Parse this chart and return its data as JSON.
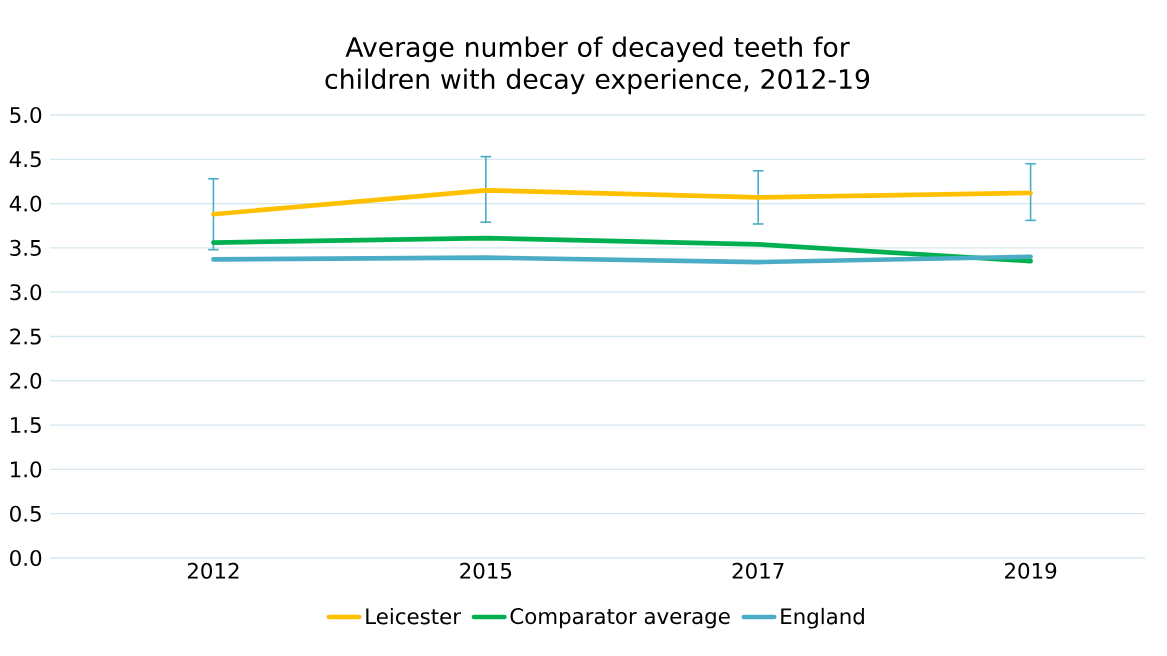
{
  "chart_data": {
    "type": "line",
    "title": "Average number of decayed teeth for children with decay experience, 2012-19",
    "categories": [
      "2012",
      "2015",
      "2017",
      "2019"
    ],
    "series": [
      {
        "name": "Leicester",
        "color": "#ffc000",
        "values": [
          3.88,
          4.15,
          4.07,
          4.12
        ],
        "errors": [
          [
            3.48,
            4.28
          ],
          [
            3.79,
            4.53
          ],
          [
            3.77,
            4.37
          ],
          [
            3.81,
            4.45
          ]
        ]
      },
      {
        "name": "Comparator average",
        "color": "#00b050",
        "values": [
          3.56,
          3.61,
          3.54,
          3.35
        ]
      },
      {
        "name": "England",
        "color": "#4bacc6",
        "values": [
          3.37,
          3.39,
          3.34,
          3.4
        ]
      }
    ],
    "ylim": [
      0,
      5
    ],
    "yticks": [
      {
        "value": 0,
        "label": "0.0"
      },
      0.5,
      {
        "value": 1,
        "label": "1.0"
      },
      1.5,
      {
        "value": 2,
        "label": "2.0"
      },
      2.5,
      {
        "value": 3,
        "label": "3.0"
      },
      3.5,
      {
        "value": 4,
        "label": "4.0"
      },
      4.5,
      {
        "value": 5,
        "label": "5.0"
      }
    ],
    "grid": "y",
    "legend": "bottom",
    "marker": "none",
    "line_style": "solid"
  }
}
